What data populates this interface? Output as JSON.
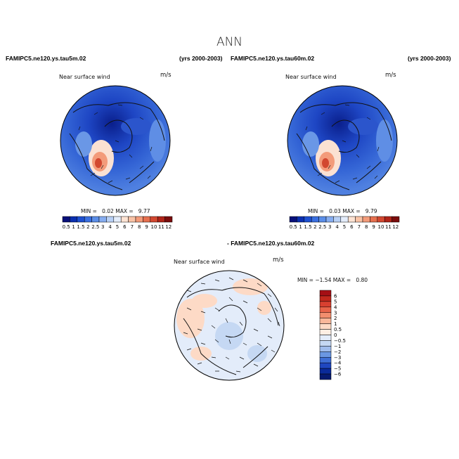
{
  "title": "ANN",
  "panels": {
    "top_left": {
      "case": "FAMIPC5.ne120.ys.tau5m.02",
      "years": "(yrs 2000-2003)",
      "variable": "Near surface wind",
      "units": "m/s",
      "min_label": "MIN =",
      "min_value": "0.02",
      "max_label": "MAX =",
      "max_value": "9.77"
    },
    "top_right": {
      "case": "FAMIPC5.ne120.ys.tau60m.02",
      "years": "(yrs 2000-2003)",
      "variable": "Near surface wind",
      "units": "m/s",
      "min_label": "MIN =",
      "min_value": "0.03",
      "max_label": "MAX =",
      "max_value": "9.79"
    },
    "difference": {
      "case_a": "FAMIPC5.ne120.ys.tau5m.02",
      "case_b": "- FAMIPC5.ne120.ys.tau60m.02",
      "variable": "Near surface wind",
      "units": "m/s",
      "min_label": "MIN =",
      "min_value": "−1.54",
      "max_label": "MAX =",
      "max_value": "0.80"
    }
  },
  "wind_colorbar": {
    "levels": [
      "0.5",
      "1",
      "1.5",
      "2",
      "2.5",
      "3",
      "4",
      "5",
      "6",
      "7",
      "8",
      "9",
      "10",
      "11",
      "12"
    ],
    "colors": [
      "#08107a",
      "#0a2fb0",
      "#1e50d0",
      "#3a6fe0",
      "#5b8ee8",
      "#86adf0",
      "#b8d0f5",
      "#e3ecfa",
      "#fde3d3",
      "#f9c3a6",
      "#f39b7a",
      "#e6704f",
      "#d24830",
      "#b02418",
      "#7a0c0c"
    ]
  },
  "diff_colorbar": {
    "levels": [
      "6",
      "5",
      "4",
      "3",
      "2",
      "1",
      "0.5",
      "0",
      "−0.5",
      "−1",
      "−2",
      "−3",
      "−4",
      "−5",
      "−6"
    ],
    "colors": [
      "#a50f15",
      "#c1281d",
      "#d84030",
      "#e8644a",
      "#f28e6e",
      "#f9b79a",
      "#fddac6",
      "#fdeee3",
      "#e3ecfa",
      "#c5d8f3",
      "#9fbcec",
      "#6b97e2",
      "#3f6fd6",
      "#1f47c0",
      "#0a2a9a",
      "#061a70"
    ]
  }
}
